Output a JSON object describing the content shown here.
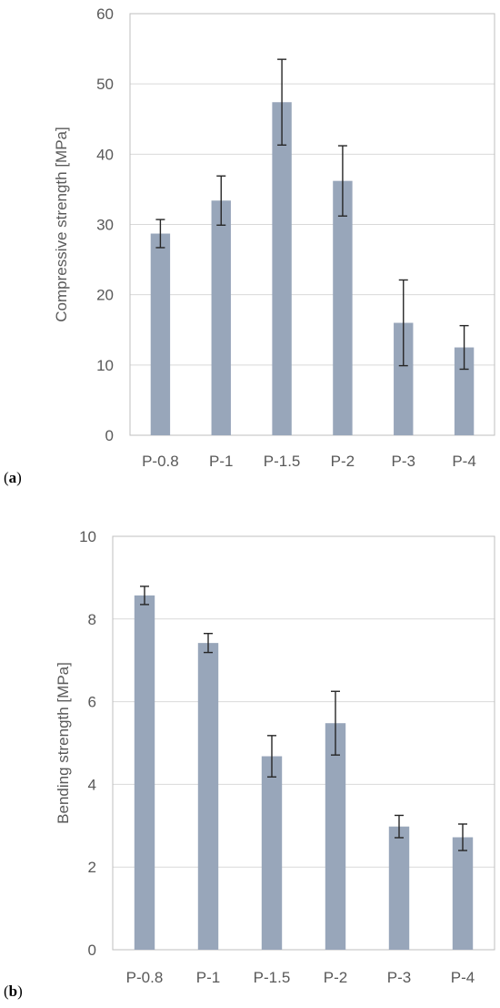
{
  "chart_data": [
    {
      "type": "bar",
      "panel_label_letter": "a",
      "categories": [
        "P-0.8",
        "P-1",
        "P-1.5",
        "P-2",
        "P-3",
        "P-4"
      ],
      "values": [
        28.7,
        33.4,
        47.4,
        36.2,
        16.0,
        12.5
      ],
      "errors": [
        2.0,
        3.5,
        6.1,
        5.0,
        6.1,
        3.1
      ],
      "ylabel": "Compressive strength [MPa]",
      "xlabel": "",
      "ylim": [
        0,
        60
      ],
      "yticks": [
        0,
        10,
        20,
        30,
        40,
        50,
        60
      ],
      "grid": true,
      "bar_color": "#98a6ba"
    },
    {
      "type": "bar",
      "panel_label_letter": "b",
      "categories": [
        "P-0.8",
        "P-1",
        "P-1.5",
        "P-2",
        "P-3",
        "P-4"
      ],
      "values": [
        8.57,
        7.42,
        4.68,
        5.48,
        2.98,
        2.72
      ],
      "errors": [
        0.22,
        0.23,
        0.5,
        0.77,
        0.27,
        0.32
      ],
      "ylabel": "Bending strength [MPa]",
      "xlabel": "",
      "ylim": [
        0,
        10
      ],
      "yticks": [
        0,
        2,
        4,
        6,
        8,
        10
      ],
      "grid": true,
      "bar_color": "#98a6ba"
    }
  ]
}
